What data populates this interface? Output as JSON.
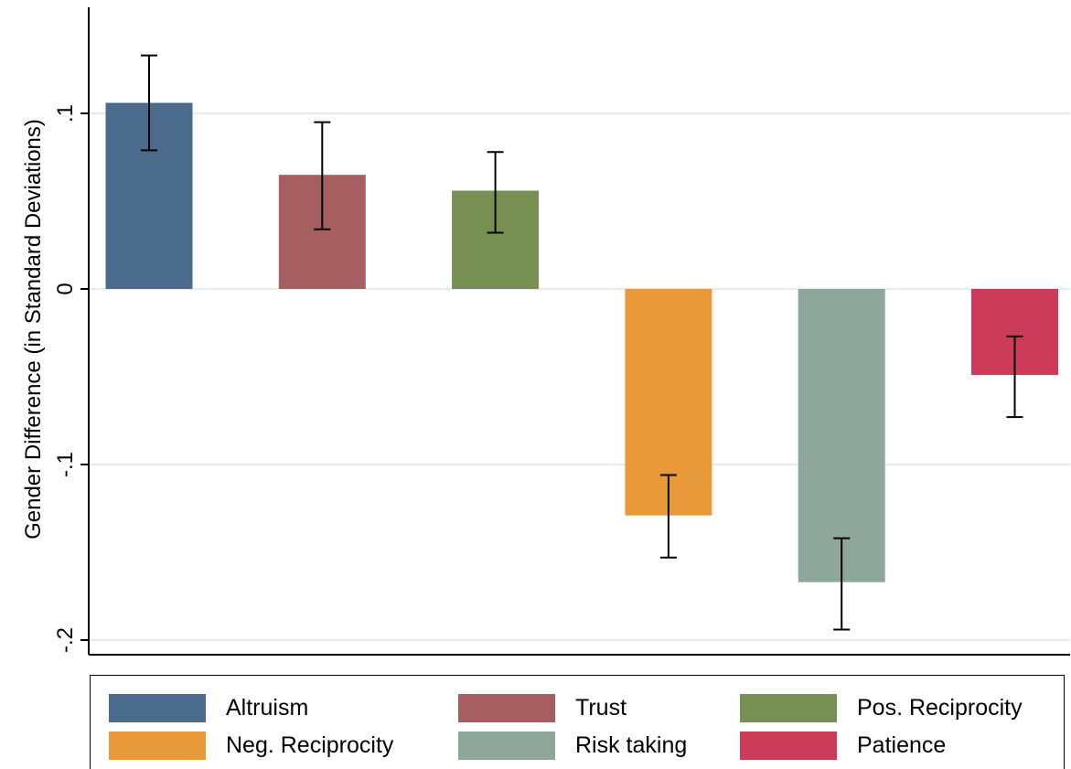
{
  "chart_data": {
    "type": "bar",
    "title": "",
    "xlabel": "",
    "ylabel": "Gender Difference (in Standard Deviations)",
    "ylim": [
      -0.21,
      0.16
    ],
    "yticks": [
      0.1,
      0,
      -0.1,
      -0.2
    ],
    "ytick_labels": [
      ".1",
      "0",
      "-.1",
      "-.2"
    ],
    "grid": true,
    "legend_position": "bottom",
    "categories": [
      "Altruism",
      "Trust",
      "Pos. Reciprocity",
      "Neg. Reciprocity",
      "Risk taking",
      "Patience"
    ],
    "values": [
      0.106,
      0.065,
      0.056,
      -0.129,
      -0.167,
      -0.049
    ],
    "error_bars": [
      {
        "low": 0.079,
        "high": 0.133
      },
      {
        "low": 0.034,
        "high": 0.095
      },
      {
        "low": 0.032,
        "high": 0.078
      },
      {
        "low": -0.153,
        "high": -0.106
      },
      {
        "low": -0.194,
        "high": -0.142
      },
      {
        "low": -0.073,
        "high": -0.027
      }
    ],
    "colors": [
      "#4a6b8c",
      "#a65e60",
      "#788f53",
      "#e8993a",
      "#8fa69b",
      "#cc3b5a"
    ]
  }
}
